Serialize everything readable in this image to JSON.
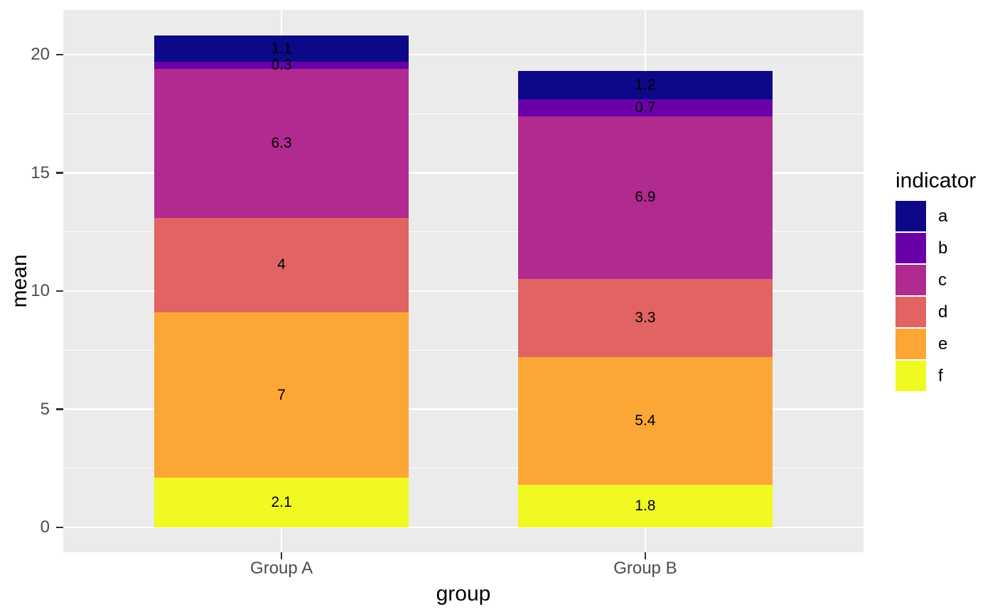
{
  "chart_data": {
    "type": "bar",
    "stacked": true,
    "title": "",
    "xlabel": "group",
    "ylabel": "mean",
    "categories": [
      "Group A",
      "Group B"
    ],
    "series": [
      {
        "name": "a",
        "color": "#0D0887",
        "values": [
          1.1,
          1.2
        ],
        "labels": [
          "1.1",
          "1.2"
        ]
      },
      {
        "name": "b",
        "color": "#6A00A8",
        "values": [
          0.3,
          0.7
        ],
        "labels": [
          "0.3",
          "0.7"
        ]
      },
      {
        "name": "c",
        "color": "#B12A90",
        "values": [
          6.3,
          6.9
        ],
        "labels": [
          "6.3",
          "6.9"
        ]
      },
      {
        "name": "d",
        "color": "#E16462",
        "values": [
          4,
          3.3
        ],
        "labels": [
          "4",
          "3.3"
        ]
      },
      {
        "name": "e",
        "color": "#FCA636",
        "values": [
          7,
          5.4
        ],
        "labels": [
          "7",
          "5.4"
        ]
      },
      {
        "name": "f",
        "color": "#F0F921",
        "values": [
          2.1,
          1.8
        ],
        "labels": [
          "2.1",
          "1.8"
        ]
      }
    ],
    "stack_order_bottom_to_top": [
      "f",
      "e",
      "d",
      "c",
      "b",
      "a"
    ],
    "y_ticks": [
      0,
      5,
      10,
      15,
      20
    ],
    "y_minor_ticks": [
      2.5,
      7.5,
      12.5,
      17.5
    ],
    "ylim": [
      -1.08,
      21.9
    ],
    "grid": true,
    "legend": {
      "title": "indicator",
      "position": "right",
      "entries": [
        "a",
        "b",
        "c",
        "d",
        "e",
        "f"
      ]
    }
  },
  "style": {
    "background": "#FFFFFF",
    "panel_bg": "#EBEBEB",
    "grid_color": "#FFFFFF",
    "axis_text_color": "#4D4D4D",
    "axis_title_color": "#000000",
    "tick_mark_color": "#333333",
    "bar_label_color": "#000000"
  }
}
